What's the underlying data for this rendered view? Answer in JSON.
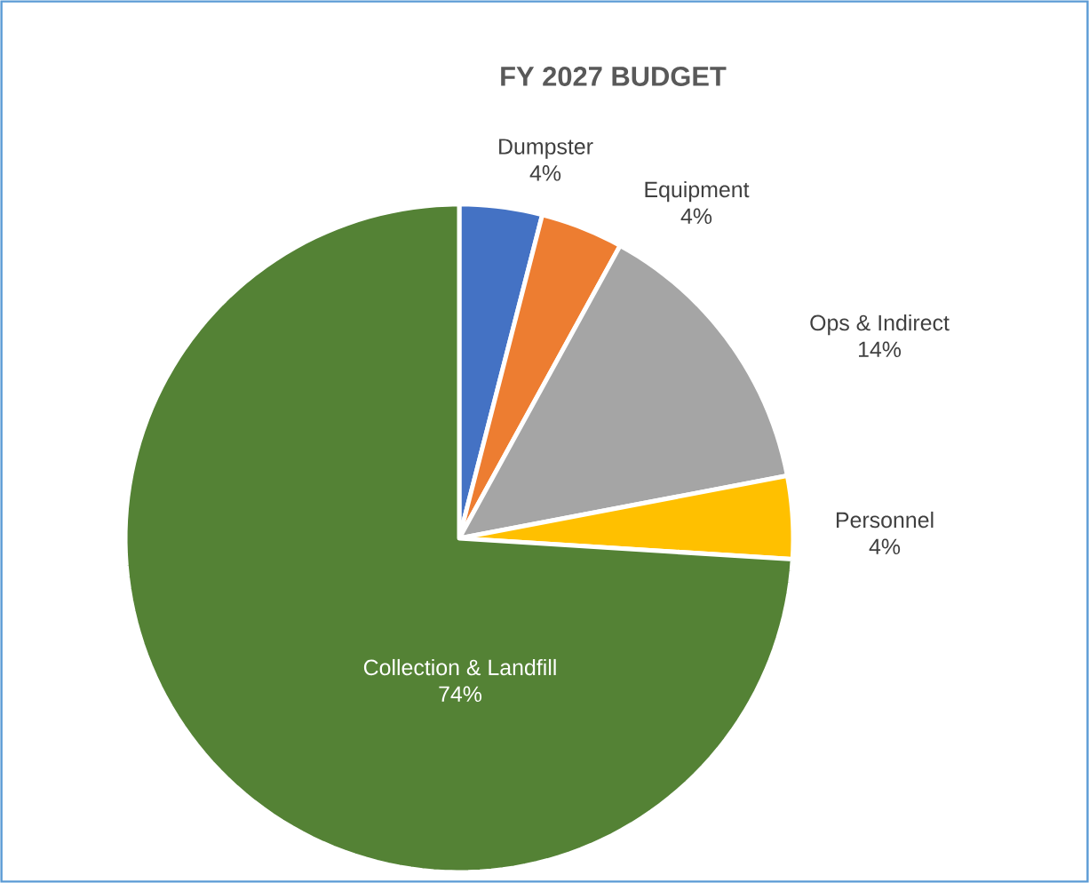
{
  "chart_data": {
    "type": "pie",
    "title": "FY 2027 BUDGET",
    "categories": [
      "Dumpster",
      "Equipment",
      "Ops & Indirect",
      "Personnel",
      "Collection & Landfill"
    ],
    "values": [
      4,
      4,
      14,
      4,
      74
    ],
    "value_labels": [
      "4%",
      "4%",
      "14%",
      "4%",
      "74%"
    ],
    "colors": [
      "#4472c4",
      "#ed7d31",
      "#a5a5a5",
      "#ffc000",
      "#548235"
    ]
  }
}
